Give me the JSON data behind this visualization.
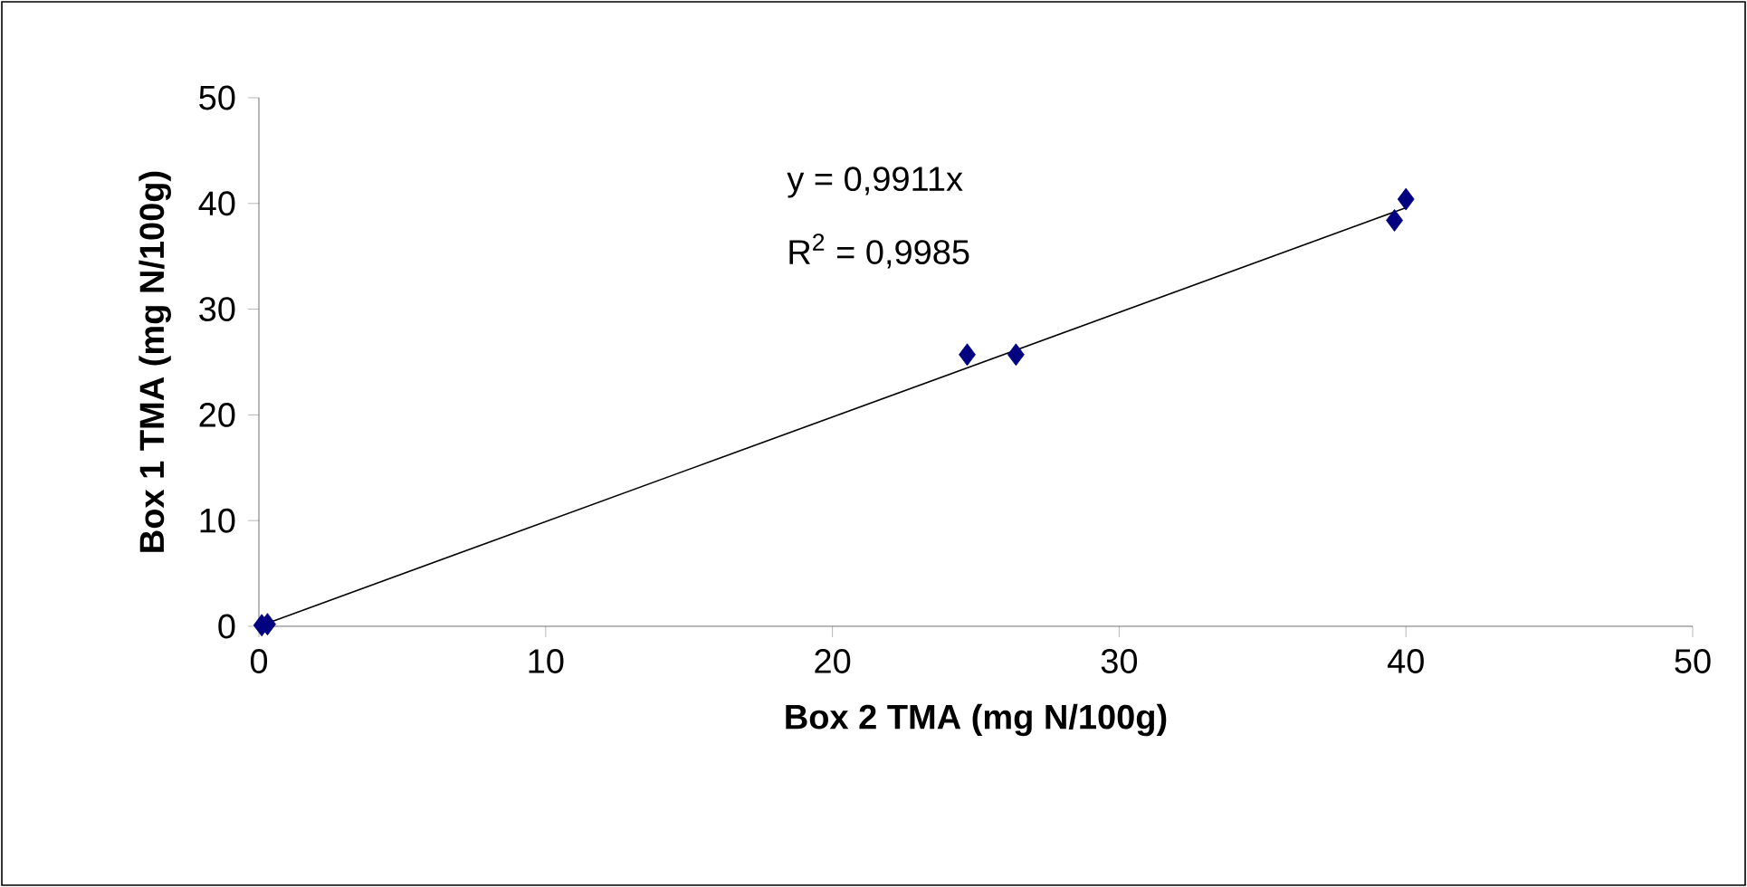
{
  "chart_data": {
    "type": "scatter",
    "xlabel": "Box 2 TMA (mg N/100g)",
    "ylabel": "Box 1 TMA (mg N/100g)",
    "annotations": [
      "y = 0,9911x",
      "R$^{2}$ = 0,9985"
    ],
    "x": [
      0.1,
      0.3,
      24.7,
      26.4,
      39.6,
      40.0
    ],
    "series": [
      {
        "values": [
          0.1,
          0.2,
          25.7,
          25.7,
          38.4,
          40.4
        ],
        "color": "#000080",
        "marker": "diamond"
      },
      {
        "type": "line",
        "x": [
          0,
          40.0
        ],
        "values": [
          0,
          39.6
        ],
        "color": "#000000",
        "marker": "none"
      }
    ],
    "xlim": [
      0,
      50
    ],
    "ylim": [
      0,
      50
    ],
    "xticks": [
      0,
      10,
      20,
      30,
      40,
      50
    ],
    "yticks": [
      0,
      10,
      20,
      30,
      40,
      50
    ],
    "grid": false
  }
}
